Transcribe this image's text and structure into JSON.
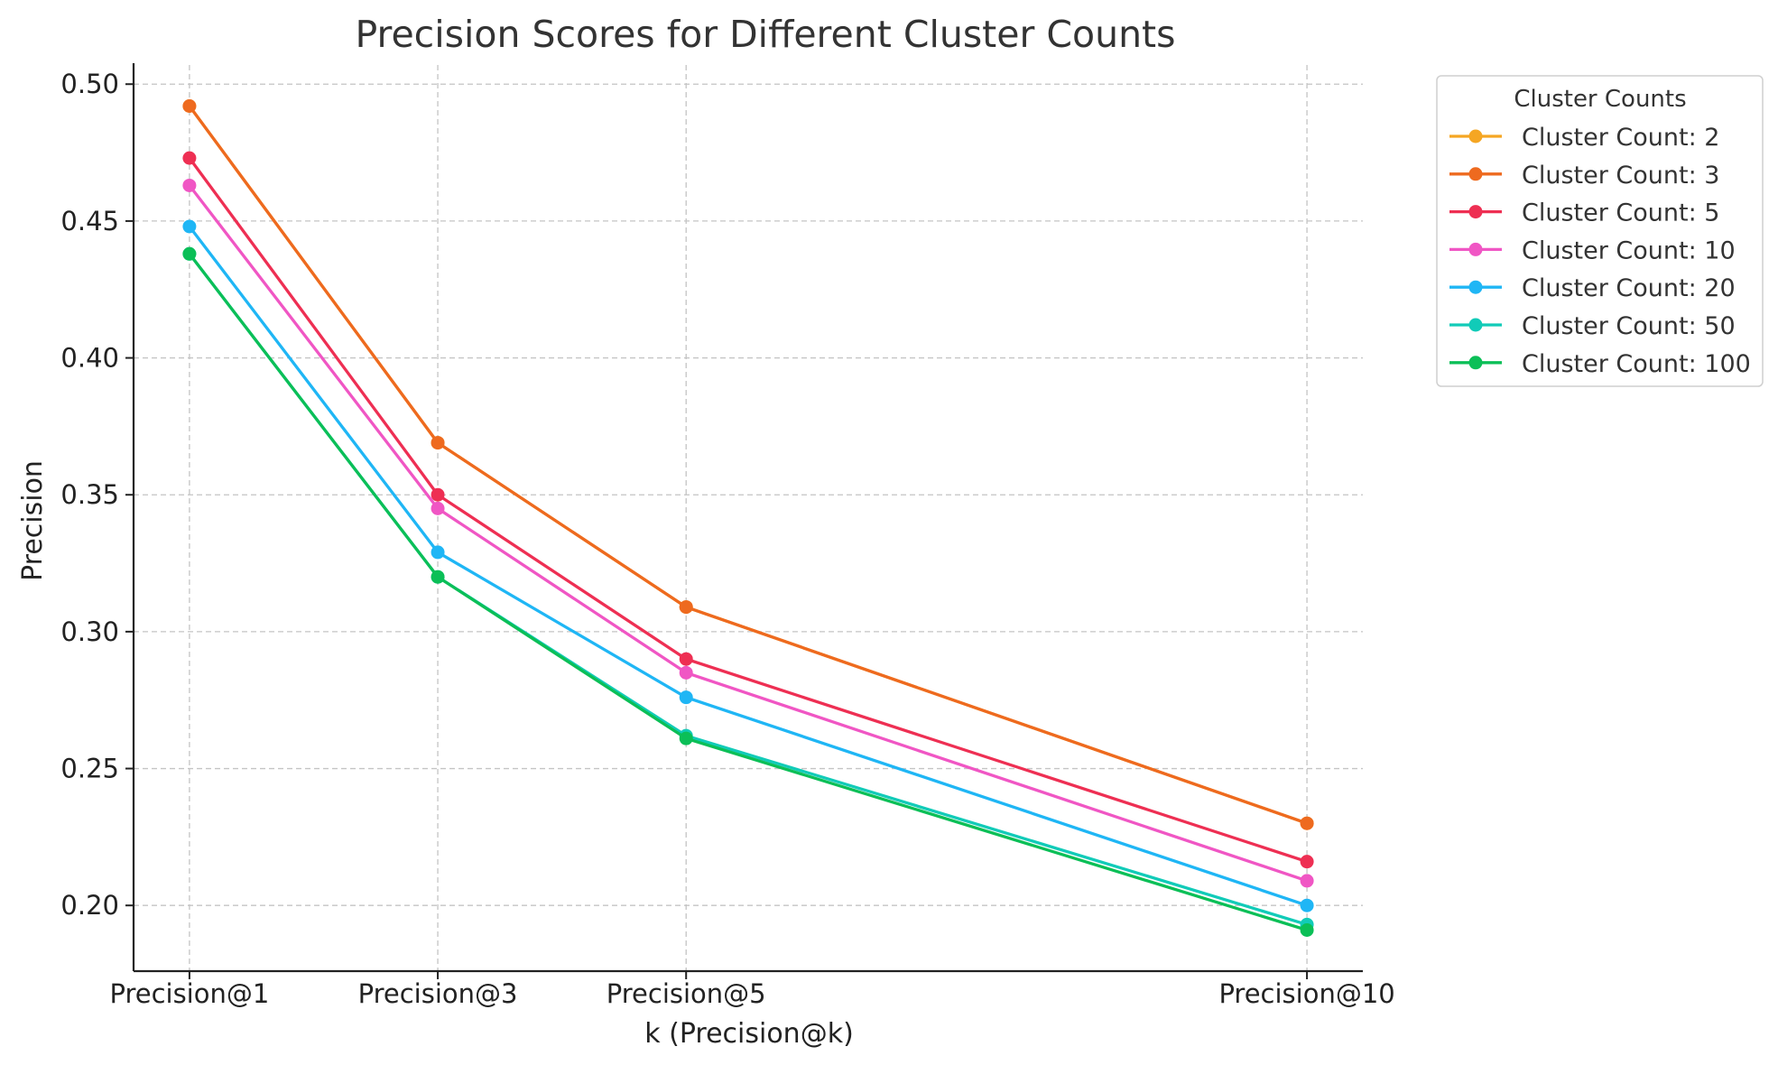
{
  "chart_data": {
    "type": "line",
    "title": "Precision Scores for Different Cluster Counts",
    "xlabel": "k (Precision@k)",
    "ylabel": "Precision",
    "categories": [
      "Precision@1",
      "Precision@3",
      "Precision@5",
      "Precision@10"
    ],
    "x": [
      1,
      3,
      5,
      10
    ],
    "xlim": [
      0.55,
      10.45
    ],
    "ylim": [
      0.176,
      0.507
    ],
    "yticks": [
      0.2,
      0.25,
      0.3,
      0.35,
      0.4,
      0.45,
      0.5
    ],
    "ytick_labels": [
      "0.20",
      "0.25",
      "0.30",
      "0.35",
      "0.40",
      "0.45",
      "0.50"
    ],
    "grid": true,
    "legend": {
      "title": "Cluster Counts",
      "placement": "outside-top-right"
    },
    "series": [
      {
        "name": "Cluster Count: 2",
        "color": "#f5a623",
        "values": [
          0.492,
          0.369,
          0.309,
          0.23
        ]
      },
      {
        "name": "Cluster Count: 3",
        "color": "#ee6a1f",
        "values": [
          0.492,
          0.369,
          0.309,
          0.23
        ]
      },
      {
        "name": "Cluster Count: 5",
        "color": "#ee2f53",
        "values": [
          0.473,
          0.35,
          0.29,
          0.216
        ]
      },
      {
        "name": "Cluster Count: 10",
        "color": "#f056c4",
        "values": [
          0.463,
          0.345,
          0.285,
          0.209
        ]
      },
      {
        "name": "Cluster Count: 20",
        "color": "#1fb6f5",
        "values": [
          0.448,
          0.329,
          0.276,
          0.2
        ]
      },
      {
        "name": "Cluster Count: 50",
        "color": "#11cbb8",
        "values": [
          0.438,
          0.32,
          0.262,
          0.193
        ]
      },
      {
        "name": "Cluster Count: 100",
        "color": "#0bbf57",
        "values": [
          0.438,
          0.32,
          0.261,
          0.191
        ]
      }
    ]
  }
}
